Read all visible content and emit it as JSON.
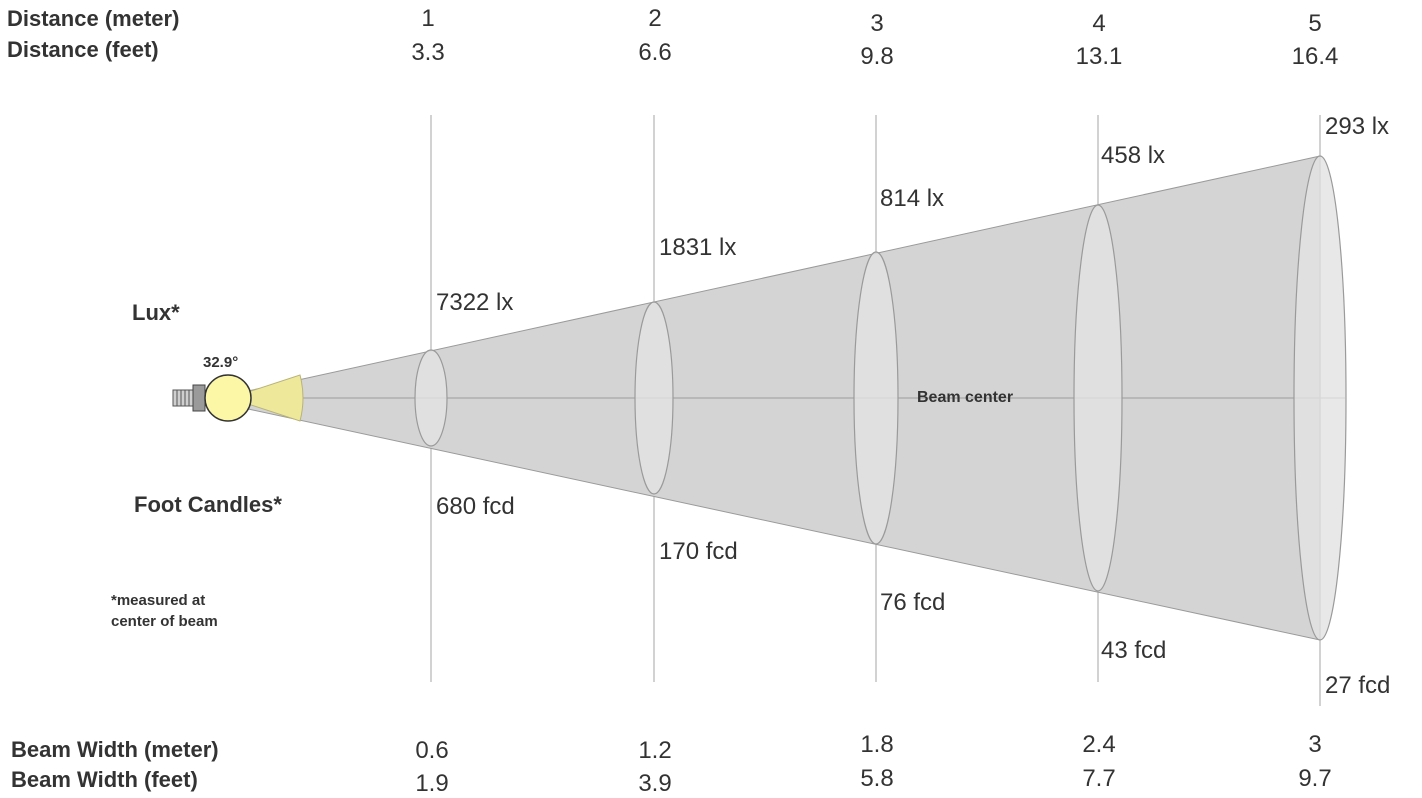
{
  "header": {
    "distance_meter_label": "Distance (meter)",
    "distance_feet_label": "Distance (feet)"
  },
  "distances_m": [
    "1",
    "2",
    "3",
    "4",
    "5"
  ],
  "distances_ft": [
    "3.3",
    "6.6",
    "9.8",
    "13.1",
    "16.4"
  ],
  "lux_values": [
    "7322 lx",
    "1831 lx",
    "814 lx",
    "458 lx",
    "293 lx"
  ],
  "fcd_values": [
    "680 fcd",
    "170 fcd",
    "76 fcd",
    "43 fcd",
    "27 fcd"
  ],
  "legend": {
    "lux": "Lux*",
    "foot_candles": "Foot Candles*",
    "note": [
      "*measured at",
      "center of beam"
    ]
  },
  "beam": {
    "angle": "32.9°",
    "center_label": "Beam center"
  },
  "footer": {
    "beam_width_meter_label": "Beam Width (meter)",
    "beam_width_feet_label": "Beam Width (feet)"
  },
  "beam_width_m": [
    "0.6",
    "1.2",
    "1.8",
    "2.4",
    "3"
  ],
  "beam_width_ft": [
    "1.9",
    "3.9",
    "5.8",
    "7.7",
    "9.7"
  ],
  "colors": {
    "cone_fill": "#d4d4d4",
    "ellipse_fill": "#e2e2e2",
    "lines": "#aaaaaa",
    "bulb": "#fbf7a6",
    "beam_wedge": "#eee99a"
  }
}
